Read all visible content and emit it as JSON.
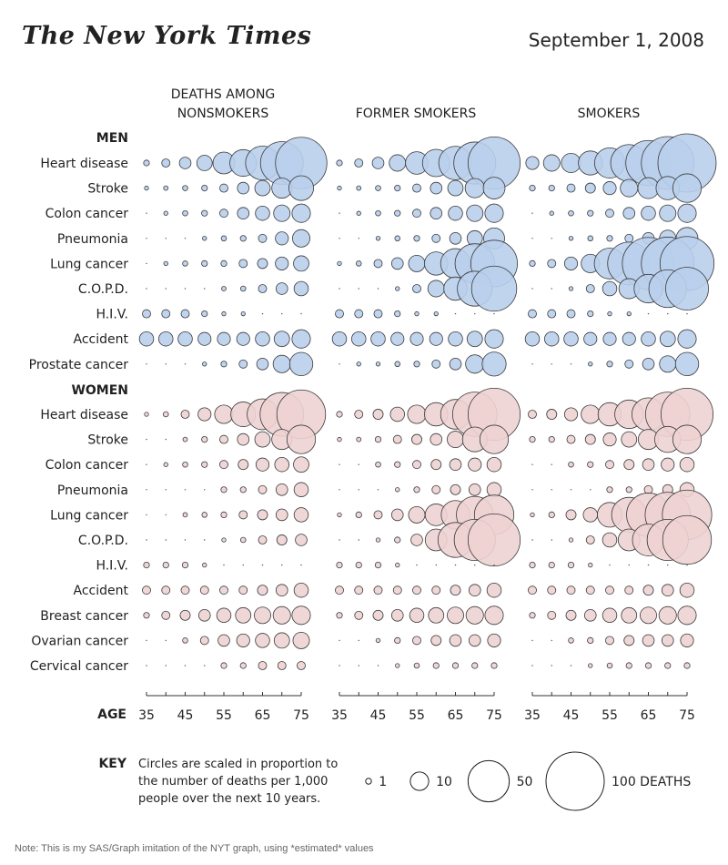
{
  "header": {
    "masthead": "The New York Times",
    "date": "September 1, 2008"
  },
  "footnote": "Note: This is my SAS/Graph imitation of the NYT graph, using *estimated* values",
  "chart_data": {
    "type": "bubble-grid",
    "groups": [
      {
        "name": "DEATHS AMONG NONSMOKERS",
        "title_lines": [
          "DEATHS AMONG",
          "NONSMOKERS"
        ]
      },
      {
        "name": "FORMER SMOKERS",
        "title_lines": [
          "FORMER SMOKERS"
        ]
      },
      {
        "name": "SMOKERS",
        "title_lines": [
          "SMOKERS"
        ]
      }
    ],
    "ages": [
      35,
      40,
      45,
      50,
      55,
      60,
      65,
      70,
      75
    ],
    "age_tick_labels": [
      35,
      45,
      55,
      65,
      75
    ],
    "age_axis_label": "AGE",
    "sections": [
      {
        "name": "MEN",
        "color": "#b9cfec",
        "causes": [
          {
            "name": "Heart disease",
            "values": [
              [
                1,
                2,
                4,
                7,
                14,
                21,
                34,
                54,
                78
              ],
              [
                1,
                2,
                4,
                8,
                15,
                22,
                33,
                52,
                80
              ],
              [
                5,
                8,
                11,
                17,
                27,
                40,
                60,
                82,
                100
              ]
            ]
          },
          {
            "name": "Stroke",
            "values": [
              [
                0.5,
                0.6,
                0.8,
                1,
                2,
                4,
                7,
                12,
                18
              ],
              [
                0.5,
                0.6,
                0.8,
                1,
                2,
                4,
                7,
                11,
                14
              ],
              [
                1,
                1,
                2,
                3,
                5,
                9,
                13,
                16,
                24
              ]
            ]
          },
          {
            "name": "Colon cancer",
            "values": [
              [
                0,
                0.5,
                0.8,
                1,
                2,
                4,
                6,
                8,
                10
              ],
              [
                0,
                0.5,
                0.8,
                1,
                2,
                4,
                6,
                8,
                10
              ],
              [
                0,
                0.5,
                0.8,
                1,
                2,
                4,
                6,
                8,
                10
              ]
            ]
          },
          {
            "name": "Pneumonia",
            "values": [
              [
                0,
                0,
                0,
                0.5,
                0.8,
                1,
                2,
                5,
                9
              ],
              [
                0,
                0,
                0.5,
                0.8,
                1,
                2,
                4,
                7,
                13
              ],
              [
                0,
                0,
                0.5,
                0.8,
                1,
                2,
                4,
                8,
                14
              ]
            ]
          },
          {
            "name": "Lung cancer",
            "values": [
              [
                0,
                0.5,
                0.8,
                1,
                1,
                2,
                3,
                5,
                7
              ],
              [
                0.5,
                0.8,
                2,
                4,
                8,
                16,
                26,
                46,
                64
              ],
              [
                1,
                2,
                5,
                10,
                28,
                54,
                80,
                82,
                86
              ]
            ]
          },
          {
            "name": "C.O.P.D.",
            "values": [
              [
                0,
                0,
                0,
                0,
                0.6,
                0.8,
                2,
                4,
                6
              ],
              [
                0,
                0,
                0,
                0.5,
                2,
                8,
                16,
                36,
                60
              ],
              [
                0,
                0,
                0.5,
                2,
                6,
                12,
                24,
                42,
                54
              ]
            ]
          },
          {
            "name": "H.I.V.",
            "values": [
              [
                2,
                2,
                2,
                1,
                0.5,
                0.4,
                0,
                0,
                0
              ],
              [
                2,
                2,
                2,
                1,
                0.5,
                0.4,
                0,
                0,
                0
              ],
              [
                2,
                2,
                2,
                1,
                0.5,
                0.4,
                0,
                0,
                0
              ]
            ]
          },
          {
            "name": "Accident",
            "values": [
              [
                6,
                6,
                6,
                5,
                5,
                5,
                6,
                7,
                10
              ],
              [
                6,
                6,
                6,
                5,
                5,
                5,
                6,
                7,
                10
              ],
              [
                6,
                6,
                6,
                5,
                5,
                5,
                6,
                7,
                10
              ]
            ]
          },
          {
            "name": "Prostate cancer",
            "values": [
              [
                0,
                0,
                0,
                0.5,
                1,
                2,
                4,
                9,
                16
              ],
              [
                0,
                0.5,
                0.5,
                0.8,
                1,
                2,
                4,
                10,
                17
              ],
              [
                0,
                0,
                0,
                0.5,
                1,
                2,
                4,
                8,
                16
              ]
            ]
          }
        ]
      },
      {
        "name": "WOMEN",
        "color": "#eed3d3",
        "causes": [
          {
            "name": "Heart disease",
            "values": [
              [
                0.5,
                0.8,
                2,
                5,
                10,
                18,
                28,
                56,
                70
              ],
              [
                1,
                2,
                3,
                6,
                10,
                16,
                26,
                58,
                80
              ],
              [
                2,
                3,
                5,
                10,
                16,
                24,
                32,
                58,
                80
              ]
            ]
          },
          {
            "name": "Stroke",
            "values": [
              [
                0,
                0,
                0.6,
                1,
                2,
                4,
                7,
                12,
                24
              ],
              [
                0.5,
                0.6,
                1,
                2,
                3,
                4,
                8,
                18,
                24
              ],
              [
                1,
                1,
                2,
                3,
                5,
                7,
                12,
                20,
                24
              ]
            ]
          },
          {
            "name": "Colon cancer",
            "values": [
              [
                0,
                0.5,
                0.8,
                1,
                2,
                3,
                5,
                6,
                7
              ],
              [
                0,
                0,
                0.8,
                1,
                2,
                3,
                4,
                5,
                6
              ],
              [
                0,
                0,
                0.8,
                1,
                2,
                3,
                4,
                5,
                6
              ]
            ]
          },
          {
            "name": "Pneumonia",
            "values": [
              [
                0,
                0,
                0,
                0,
                1,
                1,
                2,
                4,
                6
              ],
              [
                0,
                0,
                0,
                0.5,
                1,
                2,
                3,
                4,
                6
              ],
              [
                0,
                0,
                0,
                0,
                1,
                1,
                2,
                3,
                6
              ]
            ]
          },
          {
            "name": "Lung cancer",
            "values": [
              [
                0,
                0,
                0.6,
                0.8,
                1,
                2,
                3,
                4,
                6
              ],
              [
                0.5,
                1,
                2,
                4,
                8,
                14,
                24,
                40,
                46
              ],
              [
                0.5,
                1,
                3,
                6,
                18,
                36,
                56,
                60,
                72
              ]
            ]
          },
          {
            "name": "C.O.P.D.",
            "values": [
              [
                0,
                0,
                0,
                0,
                0.5,
                0.8,
                2,
                3,
                4
              ],
              [
                0,
                0,
                0.5,
                1,
                4,
                14,
                36,
                50,
                80
              ],
              [
                0,
                0,
                0.5,
                2,
                6,
                14,
                30,
                50,
                70
              ]
            ]
          },
          {
            "name": "H.I.V.",
            "values": [
              [
                1,
                1,
                1,
                0.5,
                0,
                0,
                0,
                0,
                0
              ],
              [
                1,
                1,
                1,
                0.5,
                0,
                0,
                0,
                0,
                0
              ],
              [
                1,
                1,
                1,
                0.5,
                0,
                0,
                0,
                0,
                0
              ]
            ]
          },
          {
            "name": "Accident",
            "values": [
              [
                2,
                2,
                2,
                2,
                2,
                2,
                3,
                4,
                6
              ],
              [
                2,
                2,
                2,
                2,
                2,
                2,
                3,
                4,
                6
              ],
              [
                2,
                2,
                2,
                2,
                2,
                2,
                3,
                4,
                6
              ]
            ]
          },
          {
            "name": "Breast cancer",
            "values": [
              [
                1,
                2,
                3,
                4,
                6,
                7,
                8,
                9,
                10
              ],
              [
                1,
                2,
                3,
                4,
                6,
                7,
                8,
                9,
                10
              ],
              [
                1,
                2,
                3,
                4,
                6,
                7,
                8,
                9,
                10
              ]
            ]
          },
          {
            "name": "Ovarian cancer",
            "values": [
              [
                0,
                0,
                0.8,
                2,
                4,
                5,
                6,
                7,
                8
              ],
              [
                0,
                0,
                0.5,
                1,
                2,
                3,
                4,
                4,
                5
              ],
              [
                0,
                0,
                0.8,
                1,
                2,
                3,
                4,
                4,
                5
              ]
            ]
          },
          {
            "name": "Cervical cancer",
            "values": [
              [
                0,
                0,
                0,
                0,
                1,
                1,
                2,
                2,
                2
              ],
              [
                0,
                0,
                0,
                0.5,
                0.8,
                1,
                1,
                1,
                1
              ],
              [
                0,
                0,
                0,
                0.5,
                0.8,
                1,
                1,
                1,
                1
              ]
            ]
          }
        ]
      }
    ],
    "key": {
      "label": "KEY",
      "text_lines": [
        "Circles are scaled in proportion to",
        "the number of deaths per 1,000",
        "people over the next 10 years."
      ],
      "entries": [
        {
          "value": 1,
          "label": "1"
        },
        {
          "value": 10,
          "label": "10"
        },
        {
          "value": 50,
          "label": "50"
        },
        {
          "value": 100,
          "label": "100 DEATHS"
        }
      ]
    }
  }
}
